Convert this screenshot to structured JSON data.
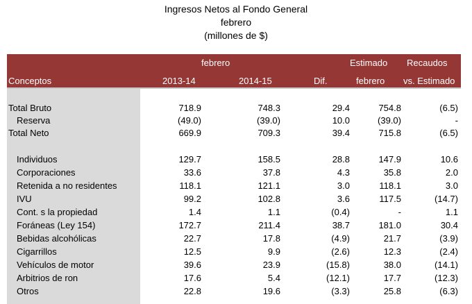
{
  "title": {
    "line1": "Ingresos Netos al Fondo General",
    "line2": "febrero",
    "line3": "(millones de $)"
  },
  "header": {
    "top_febrero": "febrero",
    "top_estimado": "Estimado",
    "top_recaudos": "Recaudos",
    "conceptos": "Conceptos",
    "y1": "2013-14",
    "y2": "2014-15",
    "dif": "Dif.",
    "estimado_sub": "febrero",
    "recaudos_sub": "vs. Estimado"
  },
  "colors": {
    "header_bg": "#953735",
    "label_shade": "#dadada"
  },
  "rows": [
    {
      "label": "Total Bruto",
      "v1": "718.9",
      "v2": "748.3",
      "dif": "29.4",
      "est": "754.8",
      "vs": "(6.5)"
    },
    {
      "label": "Reserva",
      "v1": "(49.0)",
      "v2": "(39.0)",
      "dif": "10.0",
      "est": "(39.0)",
      "vs": "-"
    },
    {
      "label": "Total Neto",
      "v1": "669.9",
      "v2": "709.3",
      "dif": "39.4",
      "est": "715.8",
      "vs": "(6.5)"
    },
    {
      "label": "Individuos",
      "v1": "129.7",
      "v2": "158.5",
      "dif": "28.8",
      "est": "147.9",
      "vs": "10.6"
    },
    {
      "label": "Corporaciones",
      "v1": "33.6",
      "v2": "37.8",
      "dif": "4.3",
      "est": "35.8",
      "vs": "2.0"
    },
    {
      "label": "Retenida a no residentes",
      "v1": "118.1",
      "v2": "121.1",
      "dif": "3.0",
      "est": "118.1",
      "vs": "3.0"
    },
    {
      "label": "IVU",
      "v1": "99.2",
      "v2": "102.8",
      "dif": "3.6",
      "est": "117.5",
      "vs": "(14.7)"
    },
    {
      "label": "Cont. s la propiedad",
      "v1": "1.4",
      "v2": "1.1",
      "dif": "(0.4)",
      "est": "-",
      "vs": "1.1"
    },
    {
      "label": "Foráneas (Ley 154)",
      "v1": "172.7",
      "v2": "211.4",
      "dif": "38.7",
      "est": "181.0",
      "vs": "30.4"
    },
    {
      "label": "Bebidas alcohólicas",
      "v1": "22.7",
      "v2": "17.8",
      "dif": "(4.9)",
      "est": "21.7",
      "vs": "(3.9)"
    },
    {
      "label": "Cigarrillos",
      "v1": "12.5",
      "v2": "9.9",
      "dif": "(2.6)",
      "est": "12.3",
      "vs": "(2.4)"
    },
    {
      "label": "Vehículos de motor",
      "v1": "39.6",
      "v2": "23.9",
      "dif": "(15.8)",
      "est": "38.0",
      "vs": "(14.1)"
    },
    {
      "label": "Arbitrios de ron",
      "v1": "17.6",
      "v2": "5.4",
      "dif": "(12.1)",
      "est": "17.7",
      "vs": "(12.3)"
    },
    {
      "label": "Otros",
      "v1": "22.8",
      "v2": "19.6",
      "dif": "(3.3)",
      "est": "25.8",
      "vs": "(6.3)"
    }
  ]
}
